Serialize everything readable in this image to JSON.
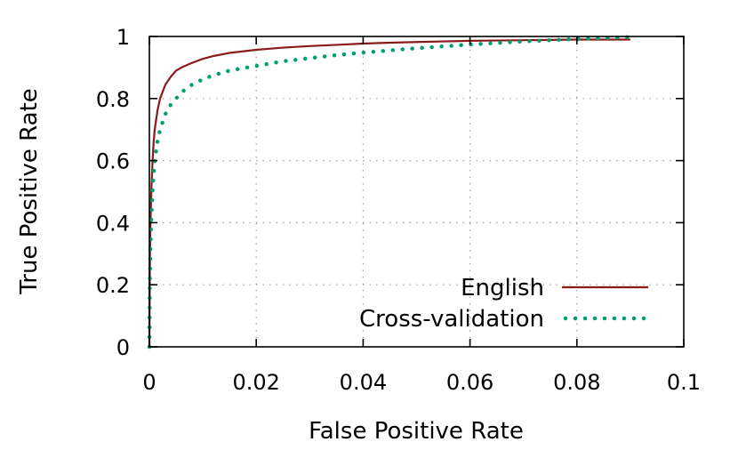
{
  "chart_data": {
    "type": "line",
    "xlabel": "False Positive Rate",
    "ylabel": "True Positive Rate",
    "xlim": [
      0,
      0.1
    ],
    "ylim": [
      0,
      1
    ],
    "xticks": [
      "0",
      "0.02",
      "0.04",
      "0.06",
      "0.08",
      "0.1"
    ],
    "yticks": [
      "0",
      "0.2",
      "0.4",
      "0.6",
      "0.8",
      "1"
    ],
    "xtick_values": [
      0,
      0.02,
      0.04,
      0.06,
      0.08,
      0.1
    ],
    "ytick_values": [
      0,
      0.2,
      0.4,
      0.6,
      0.8,
      1
    ],
    "grid": true,
    "legend_position": "bottom-right",
    "series": [
      {
        "name": "English",
        "color": "#8b1a1a",
        "style": "solid",
        "x": [
          0,
          0.0001,
          0.0002,
          0.0004,
          0.0006,
          0.0008,
          0.001,
          0.0015,
          0.002,
          0.003,
          0.004,
          0.005,
          0.006,
          0.008,
          0.01,
          0.012,
          0.015,
          0.02,
          0.025,
          0.03,
          0.035,
          0.04,
          0.045,
          0.05,
          0.055,
          0.06,
          0.065,
          0.07,
          0.075,
          0.08,
          0.085,
          0.09
        ],
        "y": [
          0,
          0.3,
          0.4,
          0.52,
          0.6,
          0.66,
          0.7,
          0.76,
          0.8,
          0.845,
          0.87,
          0.89,
          0.9,
          0.915,
          0.928,
          0.937,
          0.947,
          0.957,
          0.964,
          0.969,
          0.973,
          0.977,
          0.98,
          0.982,
          0.984,
          0.986,
          0.987,
          0.988,
          0.989,
          0.99,
          0.99,
          0.99
        ]
      },
      {
        "name": "Cross-validation",
        "color": "#009e73",
        "style": "dotted",
        "x": [
          0,
          0.0001,
          0.0002,
          0.0004,
          0.0006,
          0.0008,
          0.001,
          0.0015,
          0.002,
          0.003,
          0.004,
          0.005,
          0.006,
          0.008,
          0.01,
          0.012,
          0.015,
          0.02,
          0.025,
          0.03,
          0.035,
          0.04,
          0.045,
          0.05,
          0.055,
          0.06,
          0.065,
          0.07,
          0.075,
          0.08,
          0.085,
          0.09
        ],
        "y": [
          0,
          0.22,
          0.32,
          0.43,
          0.5,
          0.56,
          0.6,
          0.66,
          0.7,
          0.75,
          0.78,
          0.8,
          0.82,
          0.845,
          0.862,
          0.875,
          0.89,
          0.905,
          0.92,
          0.93,
          0.94,
          0.948,
          0.955,
          0.962,
          0.968,
          0.974,
          0.979,
          0.984,
          0.988,
          0.992,
          0.995,
          0.998
        ]
      }
    ]
  }
}
